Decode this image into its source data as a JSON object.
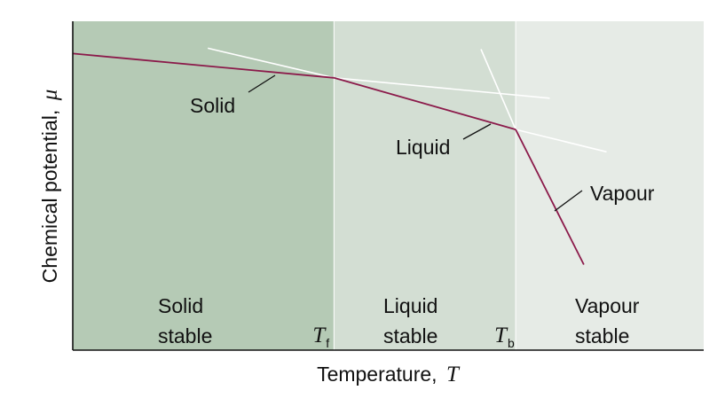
{
  "chart_data": {
    "type": "line",
    "xlabel": "Temperature,",
    "xlabel_symbol": "T",
    "ylabel": "Chemical potential,",
    "ylabel_symbol": "μ",
    "grid": false,
    "xlim": [
      0,
      1
    ],
    "ylim": [
      0,
      1
    ],
    "regions": [
      {
        "line1": "Solid",
        "line2": "stable",
        "x_range": [
          0,
          0.414
        ],
        "color": "#b5cab5"
      },
      {
        "line1": "Liquid",
        "line2": "stable",
        "x_range": [
          0.414,
          0.702
        ],
        "color": "#d3ded3"
      },
      {
        "line1": "Vapour",
        "line2": "stable",
        "x_range": [
          0.702,
          1
        ],
        "color": "#e6ebe6"
      }
    ],
    "transitions": [
      {
        "symbol": "T",
        "subscript": "f",
        "x": 0.414
      },
      {
        "symbol": "T",
        "subscript": "b",
        "x": 0.702
      }
    ],
    "series": [
      {
        "name": "Solid",
        "stable": [
          [
            0,
            0.902
          ],
          [
            0.414,
            0.828
          ]
        ],
        "metastable": [
          [
            0.214,
            0.918
          ],
          [
            0.414,
            0.828
          ]
        ]
      },
      {
        "name": "Liquid",
        "stable": [
          [
            0.414,
            0.828
          ],
          [
            0.702,
            0.671
          ]
        ],
        "metastable": [
          [
            0.414,
            0.828
          ],
          [
            0.756,
            0.766
          ]
        ]
      },
      {
        "name": "Vapour",
        "stable": [
          [
            0.702,
            0.671
          ],
          [
            0.81,
            0.26
          ]
        ],
        "metastable": [
          [
            0.647,
            0.915
          ],
          [
            0.702,
            0.671
          ],
          [
            0.846,
            0.603
          ]
        ]
      }
    ],
    "stable_line_color": "#8b1a4a",
    "metastable_line_color": "#ffffff"
  }
}
